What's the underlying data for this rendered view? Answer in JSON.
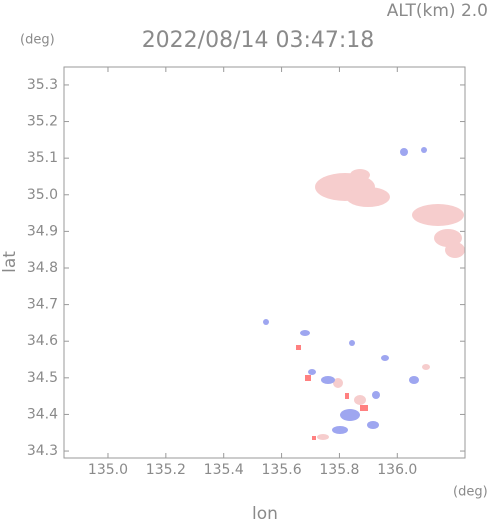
{
  "chart_data": {
    "type": "map",
    "title": "2022/08/14 03:47:18",
    "subtitle": "ALT(km) 2.0",
    "x_label": "lon",
    "y_label": "lat",
    "x_unit": "(deg)",
    "y_unit": "(deg)",
    "xlim": [
      134.848,
      136.234
    ],
    "ylim": [
      34.281,
      35.349
    ],
    "xticks": [
      {
        "value": 135,
        "label": "135.0"
      },
      135.2,
      135.4,
      135.6,
      135.8,
      {
        "value": 136,
        "label": "136.0"
      }
    ],
    "yticks": [
      34.3,
      34.4,
      34.5,
      34.6,
      34.7,
      34.8,
      34.9,
      {
        "value": 35,
        "label": "35.0"
      },
      35.1,
      35.2,
      35.3
    ]
  }
}
